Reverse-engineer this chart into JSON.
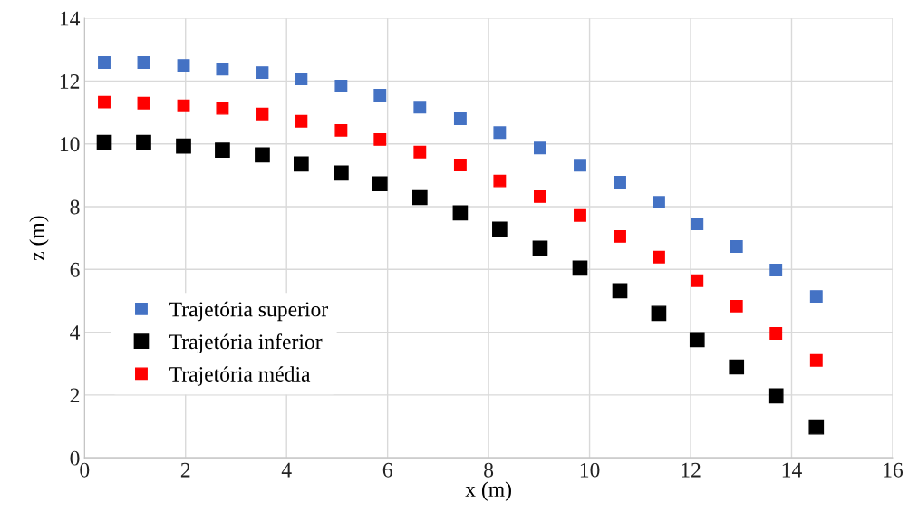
{
  "chart_data": {
    "type": "scatter",
    "xlabel": "x (m)",
    "ylabel": "z (m)",
    "x": [
      0.39,
      1.17,
      1.96,
      2.73,
      3.52,
      4.29,
      5.08,
      5.85,
      6.64,
      7.44,
      8.22,
      9.02,
      9.81,
      10.6,
      11.37,
      12.13,
      12.91,
      13.69,
      14.49
    ],
    "series": [
      {
        "name": "Trajetória superior",
        "color": "#4472c4",
        "values": [
          12.59,
          12.59,
          12.5,
          12.38,
          12.27,
          12.07,
          11.84,
          11.55,
          11.17,
          10.8,
          10.36,
          9.87,
          9.32,
          8.78,
          8.14,
          7.45,
          6.73,
          5.98,
          5.14
        ]
      },
      {
        "name": "Trajetória inferior",
        "color": "#000000",
        "values": [
          10.05,
          10.05,
          9.93,
          9.8,
          9.65,
          9.36,
          9.07,
          8.73,
          8.29,
          7.8,
          7.28,
          6.68,
          6.04,
          5.32,
          4.6,
          3.76,
          2.89,
          1.97,
          0.98
        ]
      },
      {
        "name": "Trajetória média",
        "color": "#ff0000",
        "values": [
          11.33,
          11.3,
          11.21,
          11.13,
          10.95,
          10.72,
          10.43,
          10.14,
          9.74,
          9.33,
          8.82,
          8.32,
          7.72,
          7.05,
          6.39,
          5.64,
          4.83,
          3.96,
          3.1
        ]
      }
    ],
    "xlim": [
      0,
      16
    ],
    "xticks": [
      0,
      2,
      4,
      6,
      8,
      10,
      12,
      14,
      16
    ],
    "ylim": [
      0,
      14
    ],
    "yticks": [
      0,
      2,
      4,
      6,
      8,
      10,
      12,
      14
    ],
    "grid": true,
    "legend": "lower left",
    "marker": "square"
  }
}
